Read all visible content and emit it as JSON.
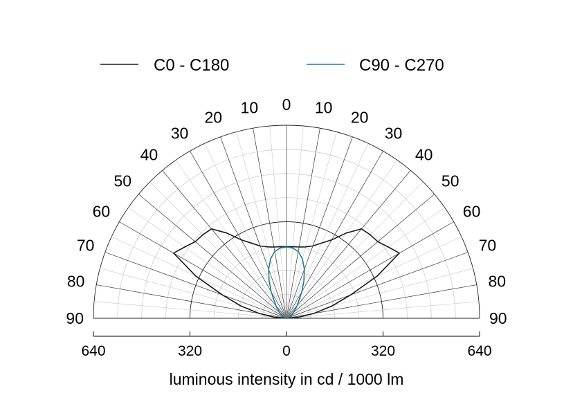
{
  "chart_data": {
    "type": "polar",
    "xlabel": "luminous intensity in cd / 1000 lm",
    "rmax": 640,
    "radial_ticks": [
      "640",
      "320",
      "0",
      "320",
      "640"
    ],
    "angle_labels": [
      "0",
      "10",
      "20",
      "30",
      "40",
      "50",
      "60",
      "70",
      "80",
      "90"
    ],
    "angle_range": [
      0,
      90
    ],
    "legend": {
      "placement": "top"
    },
    "series": [
      {
        "name": "C0 - C180",
        "color": "#1a1a1a",
        "angles": [
          0,
          5,
          10,
          15,
          20,
          25,
          30,
          35,
          40,
          45,
          50,
          55,
          60,
          65,
          70,
          75,
          80,
          85,
          90
        ],
        "values": [
          237,
          238,
          240,
          245,
          255,
          275,
          300,
          345,
          387,
          392,
          395,
          412,
          432,
          332,
          226,
          155,
          92,
          40,
          0
        ]
      },
      {
        "name": "C90 - C270",
        "color": "#1f7a95",
        "angles": [
          0,
          5,
          10,
          15,
          20,
          25,
          30,
          40,
          50,
          60,
          70,
          80,
          90
        ],
        "values": [
          236,
          234,
          225,
          204,
          173,
          136,
          102,
          55,
          30,
          16,
          8,
          3,
          0
        ]
      }
    ]
  }
}
